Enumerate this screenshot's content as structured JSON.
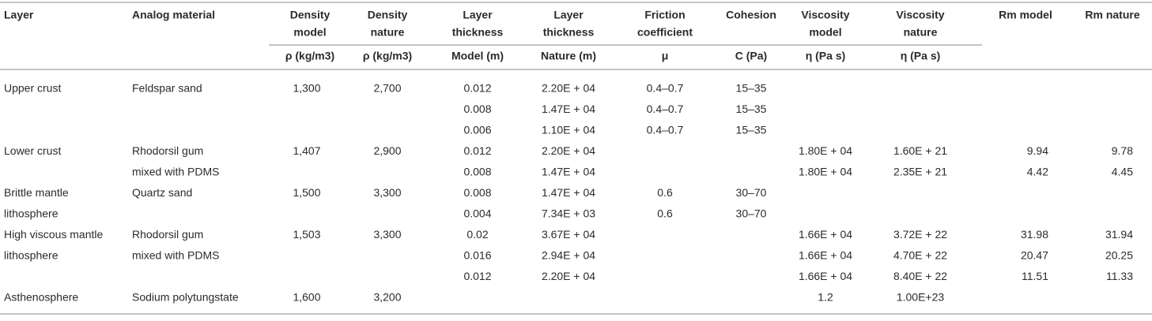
{
  "table": {
    "columns": [
      {
        "title": [
          "Layer"
        ],
        "unit": null
      },
      {
        "title": [
          "Analog material"
        ],
        "unit": null
      },
      {
        "title": [
          "Density",
          "model"
        ],
        "unit": "ρ (kg/m3)"
      },
      {
        "title": [
          "Density",
          "nature"
        ],
        "unit": "ρ (kg/m3)"
      },
      {
        "title": [
          "Layer",
          "thickness"
        ],
        "unit": "Model (m)"
      },
      {
        "title": [
          "Layer",
          "thickness"
        ],
        "unit": "Nature (m)"
      },
      {
        "title": [
          "Friction",
          "coefficient"
        ],
        "unit": "μ"
      },
      {
        "title": [
          "Cohesion"
        ],
        "unit": "C (Pa)"
      },
      {
        "title": [
          "Viscosity",
          "model"
        ],
        "unit": "η (Pa s)"
      },
      {
        "title": [
          "Viscosity",
          "nature"
        ],
        "unit": "η (Pa s)"
      },
      {
        "title": [
          "Rm model"
        ],
        "unit": null
      },
      {
        "title": [
          "Rm nature"
        ],
        "unit": null
      }
    ],
    "rows": [
      [
        "Upper crust",
        "Feldspar sand",
        "1,300",
        "2,700",
        "0.012",
        "2.20E + 04",
        "0.4–0.7",
        "15–35",
        null,
        null,
        null,
        null
      ],
      [
        null,
        null,
        null,
        null,
        "0.008",
        "1.47E + 04",
        "0.4–0.7",
        "15–35",
        null,
        null,
        null,
        null
      ],
      [
        null,
        null,
        null,
        null,
        "0.006",
        "1.10E + 04",
        "0.4–0.7",
        "15–35",
        null,
        null,
        null,
        null
      ],
      [
        "Lower crust",
        "Rhodorsil gum",
        "1,407",
        "2,900",
        "0.012",
        "2.20E + 04",
        null,
        null,
        "1.80E + 04",
        "1.60E + 21",
        "9.94",
        "9.78"
      ],
      [
        null,
        "mixed with PDMS",
        null,
        null,
        "0.008",
        "1.47E + 04",
        null,
        null,
        "1.80E + 04",
        "2.35E + 21",
        "4.42",
        "4.45"
      ],
      [
        "Brittle mantle",
        "Quartz sand",
        "1,500",
        "3,300",
        "0.008",
        "1.47E + 04",
        "0.6",
        "30–70",
        null,
        null,
        null,
        null
      ],
      [
        "lithosphere",
        null,
        null,
        null,
        "0.004",
        "7.34E + 03",
        "0.6",
        "30–70",
        null,
        null,
        null,
        null
      ],
      [
        "High viscous mantle",
        "Rhodorsil gum",
        "1,503",
        "3,300",
        "0.02",
        "3.67E + 04",
        null,
        null,
        "1.66E + 04",
        "3.72E + 22",
        "31.98",
        "31.94"
      ],
      [
        "lithosphere",
        "mixed with PDMS",
        null,
        null,
        "0.016",
        "2.94E + 04",
        null,
        null,
        "1.66E + 04",
        "4.70E + 22",
        "20.47",
        "20.25"
      ],
      [
        null,
        null,
        null,
        null,
        "0.012",
        "2.20E + 04",
        null,
        null,
        "1.66E + 04",
        "8.40E + 22",
        "11.51",
        "11.33"
      ],
      [
        "Asthenosphere",
        "Sodium polytungstate",
        "1,600",
        "3,200",
        null,
        null,
        null,
        null,
        "1.2",
        "1.00E+23",
        null,
        null
      ]
    ]
  }
}
